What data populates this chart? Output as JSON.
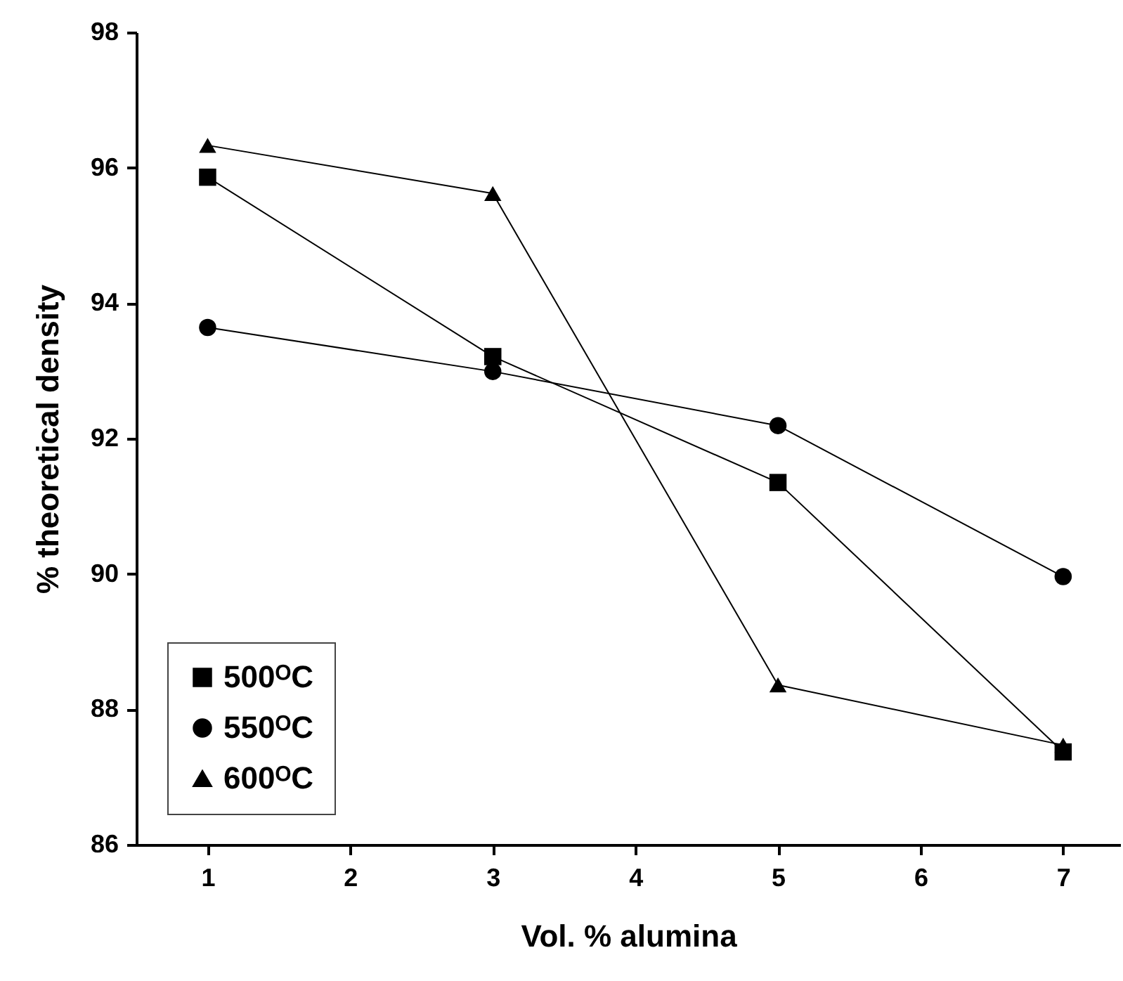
{
  "chart_data": {
    "type": "line",
    "xlabel": "Vol. % alumina",
    "ylabel": "% theoretical density",
    "x": [
      1,
      3,
      5,
      7
    ],
    "series": [
      {
        "name": "500ᴼC",
        "color": "#000000",
        "marker": "square",
        "values": [
          95.86,
          93.21,
          91.35,
          87.37
        ]
      },
      {
        "name": "550ᴼC",
        "color": "#000000",
        "marker": "circle",
        "values": [
          93.64,
          92.99,
          92.19,
          89.96
        ]
      },
      {
        "name": "600ᴼC",
        "color": "#000000",
        "marker": "triangle",
        "values": [
          96.33,
          95.62,
          88.36,
          87.47
        ]
      }
    ],
    "xlim": [
      0.5,
      7.4
    ],
    "xticks": [
      1,
      2,
      3,
      4,
      5,
      6,
      7
    ],
    "ylim": [
      86,
      98
    ],
    "yticks": [
      86,
      88,
      90,
      92,
      94,
      96,
      98
    ],
    "grid": false,
    "legend": "bottom left",
    "line_style": "solid"
  }
}
